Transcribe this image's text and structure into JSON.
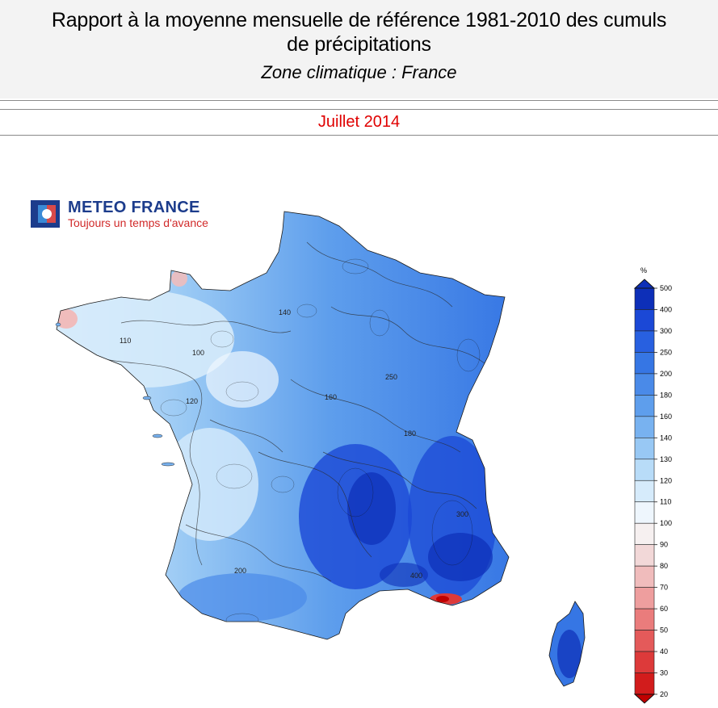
{
  "header": {
    "title_line1": "Rapport à la moyenne mensuelle de référence 1981-2010 des cumuls",
    "title_line2": "de précipitations",
    "subtitle": "Zone climatique : France"
  },
  "period": "Juillet 2014",
  "logo": {
    "name": "METEO FRANCE",
    "tagline": "Toujours un temps d'avance",
    "icon": "meteo-france-logo-icon"
  },
  "legend": {
    "unit": "%",
    "levels": [
      "500",
      "400",
      "300",
      "250",
      "200",
      "180",
      "160",
      "140",
      "130",
      "120",
      "110",
      "100",
      "90",
      "80",
      "70",
      "60",
      "50",
      "40",
      "30",
      "20"
    ],
    "colors": [
      "#0d2fb8",
      "#1b48d6",
      "#2860e0",
      "#3676e4",
      "#4a8ae8",
      "#5e9eec",
      "#78b2f0",
      "#98c8f4",
      "#b8dcf8",
      "#d6ebfb",
      "#eef6fd",
      "#f6f0f0",
      "#f2d8d8",
      "#f0bcbc",
      "#ee9e9e",
      "#ea7c7c",
      "#e45a5a",
      "#dd3a3a",
      "#d21c1c",
      "#c00000"
    ]
  },
  "map": {
    "contour_labels": [
      "110",
      "140",
      "200",
      "160",
      "120",
      "100",
      "250",
      "180",
      "300",
      "400"
    ]
  }
}
